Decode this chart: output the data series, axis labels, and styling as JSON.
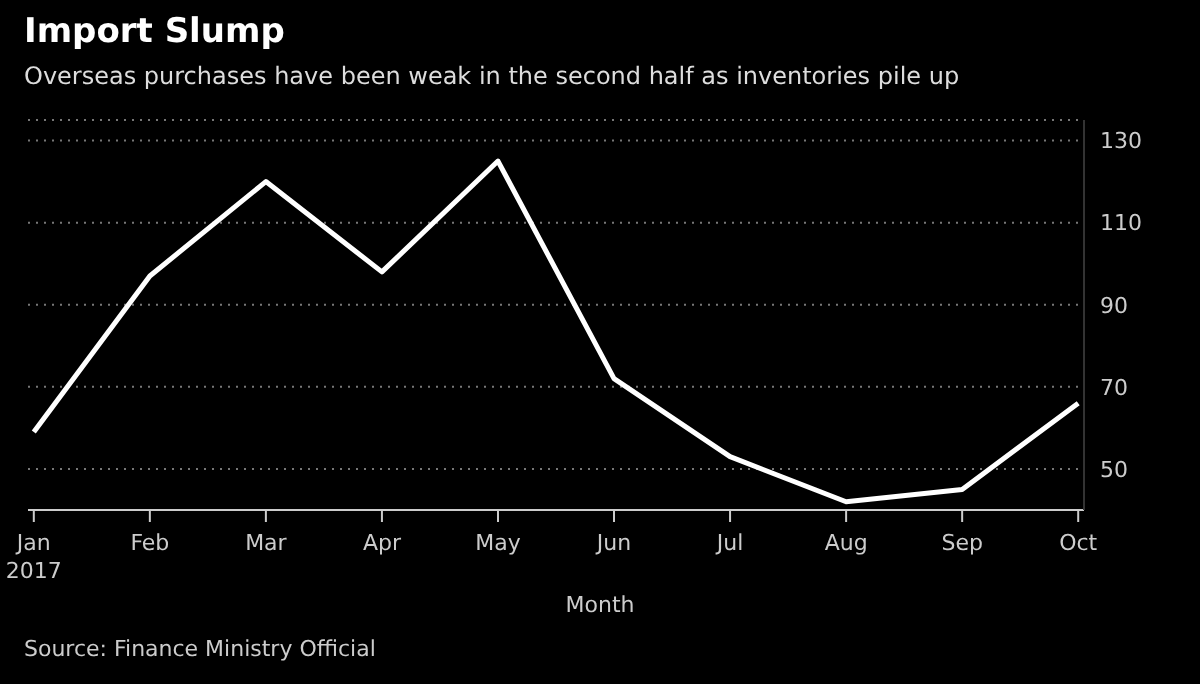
{
  "chart_data": {
    "type": "line",
    "title": "Import Slump",
    "subtitle": "Overseas purchases have been weak in the second half as inventories pile up",
    "xlabel": "Month",
    "annotations": [
      "Source: Finance Ministry Official"
    ],
    "categories": [
      "Jan\n2017",
      "Feb",
      "Mar",
      "Apr",
      "May",
      "Jun",
      "Jul",
      "Aug",
      "Sep",
      "Oct"
    ],
    "series": [
      {
        "color": "#ffffff",
        "values": [
          59,
          97,
          120,
          98,
          125,
          72,
          53,
          42,
          45,
          66
        ]
      }
    ],
    "ylim": [
      40,
      135
    ],
    "yticks": [
      50,
      70,
      90,
      110,
      130
    ],
    "grid": "y",
    "legend": false,
    "marker": "none",
    "line_style": "solid"
  }
}
